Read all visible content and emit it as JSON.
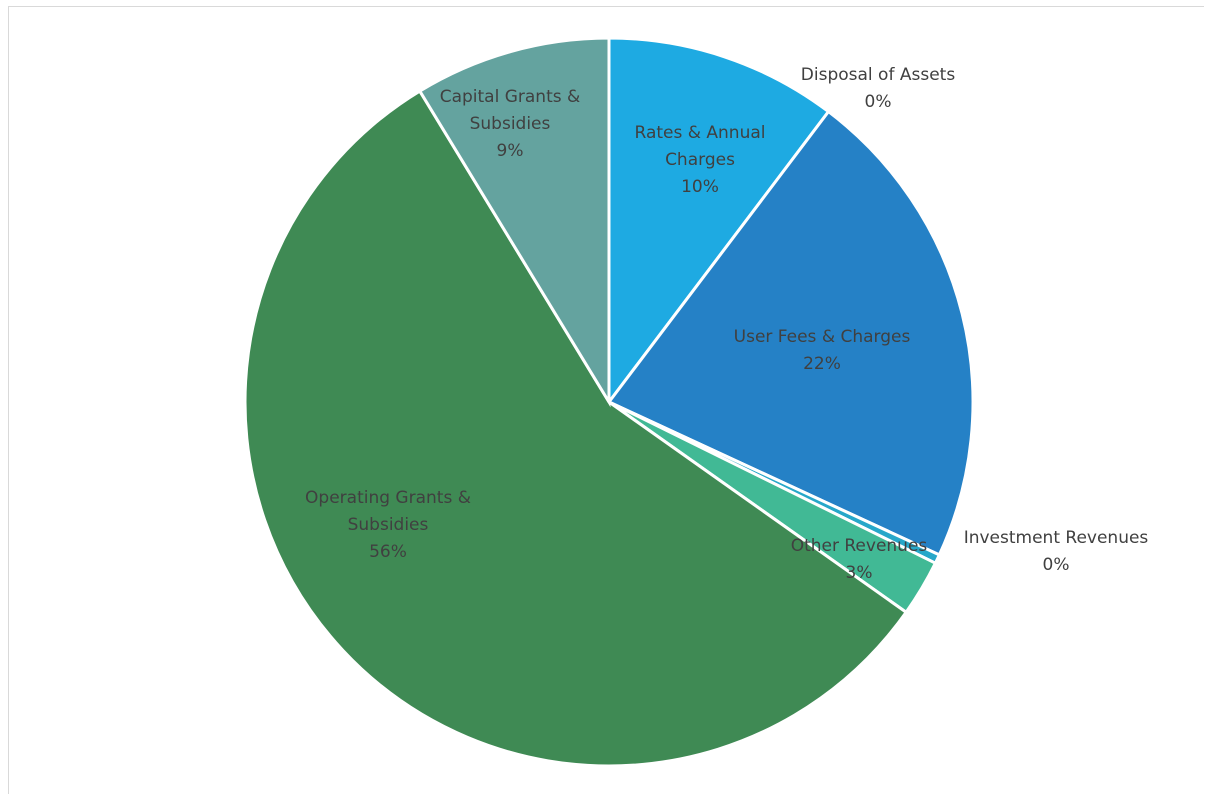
{
  "chart_data": {
    "type": "pie",
    "title": "",
    "start_angle_deg": 0,
    "direction": "clockwise",
    "slices": [
      {
        "name": "Rates & Annual Charges",
        "value": 10.3,
        "percent_label": "10%",
        "color": "#1eaae2"
      },
      {
        "name": "Disposal of Assets",
        "value": 0.0,
        "percent_label": "0%",
        "color": "#1f9ad6"
      },
      {
        "name": "User Fees & Charges",
        "value": 21.6,
        "percent_label": "22%",
        "color": "#2581c6"
      },
      {
        "name": "Investment Revenues",
        "value": 0.4,
        "percent_label": "0%",
        "color": "#27a7c9"
      },
      {
        "name": "Other Revenues",
        "value": 2.5,
        "percent_label": "3%",
        "color": "#41b995"
      },
      {
        "name": "Operating Grants & Subsidies",
        "value": 56.5,
        "percent_label": "56%",
        "color": "#3f8a54"
      },
      {
        "name": "Capital Grants & Subsidies",
        "value": 8.7,
        "percent_label": "9%",
        "color": "#64a39f"
      }
    ]
  }
}
